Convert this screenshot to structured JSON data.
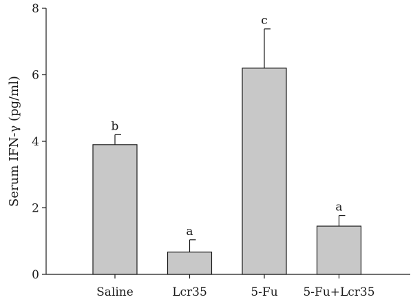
{
  "chart_data": {
    "type": "bar",
    "title": "",
    "xlabel": "",
    "ylabel": "Serum IFN-γ (pg/ml)",
    "ylim": [
      0,
      8
    ],
    "yticks": [
      0,
      2,
      4,
      6,
      8
    ],
    "categories": [
      "Saline",
      "Lcr35",
      "5-Fu",
      "5-Fu+Lcr35"
    ],
    "values": [
      3.9,
      0.67,
      6.2,
      1.45
    ],
    "errors": [
      0.3,
      0.37,
      1.18,
      0.32
    ],
    "significance": [
      "b",
      "a",
      "c",
      "a"
    ],
    "grid": false,
    "legend": "none"
  },
  "colors": {
    "bar_fill": "#c8c8c8",
    "bar_stroke": "#1a1a1a",
    "axis": "#1a1a1a"
  }
}
